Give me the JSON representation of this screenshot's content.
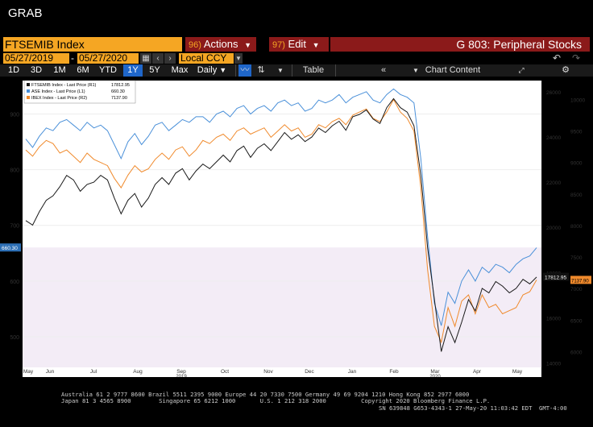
{
  "window": {
    "title": "GRAB"
  },
  "toolbar1": {
    "ticker": "FTSEMIB Index",
    "actions_num": "96)",
    "actions_label": "Actions",
    "edit_num": "97)",
    "edit_label": "Edit",
    "page_title": "G 803: Peripheral Stocks"
  },
  "toolbar2": {
    "start_date": "05/27/2019",
    "end_date": "05/27/2020",
    "dash": "-",
    "currency": "Local CCY"
  },
  "toolbar3": {
    "ranges": [
      "1D",
      "3D",
      "1M",
      "6M",
      "YTD",
      "1Y",
      "5Y",
      "Max"
    ],
    "active_range": "1Y",
    "frequency": "Daily",
    "table_label": "Table",
    "chart_content_label": "Chart Content"
  },
  "chart_data": {
    "type": "line",
    "x_tick_labels": [
      "May",
      "Jun",
      "Jul",
      "Aug",
      "Sep",
      "Oct",
      "Nov",
      "Dec",
      "Jan",
      "Feb",
      "Mar",
      "Apr",
      "May"
    ],
    "year_labels": [
      "2019",
      "2020"
    ],
    "legend": [
      {
        "name": "FTSEMIB Index - Last Price (R1)",
        "value": "17812.95",
        "color": "#d9d9d9"
      },
      {
        "name": "ASE Index - Last Price (L1)",
        "value": "660.30",
        "color": "#4a90d9"
      },
      {
        "name": "IBEX Index - Last Price (R2)",
        "value": "7137.90",
        "color": "#f08a2c"
      }
    ],
    "left_axis": {
      "ticks": [
        500,
        600,
        700,
        800,
        900
      ],
      "range": [
        445,
        960
      ],
      "current_label": "660.30"
    },
    "right_axis_1": {
      "ticks": [
        14000,
        16000,
        18000,
        20000,
        22000,
        24000,
        26000
      ],
      "range": [
        13800,
        26500
      ],
      "current_label": "17812.95"
    },
    "right_axis_2": {
      "ticks": [
        6000,
        6500,
        7000,
        7500,
        8000,
        8500,
        9000,
        9500,
        10000
      ],
      "range": [
        5750,
        10300
      ],
      "current_label": "7137.90"
    },
    "series": [
      {
        "name": "FTSEMIB Index",
        "axis": "R1",
        "values": [
          20300,
          20100,
          20700,
          21200,
          21400,
          21800,
          22300,
          22100,
          21600,
          21900,
          22000,
          22300,
          22100,
          21300,
          20600,
          21200,
          21500,
          20900,
          21300,
          21900,
          22200,
          21900,
          22400,
          22600,
          22100,
          22500,
          22800,
          22600,
          22900,
          23200,
          22900,
          23400,
          23600,
          23100,
          23500,
          23700,
          23400,
          23800,
          24200,
          23900,
          24100,
          23800,
          24000,
          24400,
          24200,
          24500,
          24700,
          24300,
          24900,
          25000,
          25200,
          24800,
          24600,
          25300,
          25700,
          25300,
          25100,
          24500,
          22300,
          19100,
          16800,
          14500,
          15600,
          14900,
          15800,
          16800,
          16300,
          17300,
          17100,
          17600,
          17400,
          17100,
          17300,
          17700,
          17500,
          17800
        ]
      },
      {
        "name": "ASE Index",
        "axis": "L1",
        "values": [
          855,
          840,
          860,
          875,
          870,
          885,
          890,
          880,
          870,
          885,
          875,
          880,
          870,
          845,
          820,
          850,
          865,
          845,
          860,
          880,
          885,
          870,
          880,
          890,
          885,
          895,
          895,
          885,
          900,
          905,
          895,
          910,
          915,
          900,
          910,
          915,
          905,
          920,
          925,
          915,
          920,
          905,
          910,
          925,
          920,
          925,
          935,
          920,
          930,
          935,
          940,
          925,
          920,
          935,
          945,
          935,
          930,
          920,
          820,
          680,
          560,
          520,
          580,
          560,
          600,
          620,
          600,
          625,
          615,
          630,
          625,
          615,
          630,
          640,
          645,
          660
        ]
      },
      {
        "name": "IBEX Index",
        "axis": "R2",
        "values": [
          9200,
          9100,
          9250,
          9350,
          9300,
          9150,
          9200,
          9100,
          9000,
          9150,
          9050,
          9000,
          8950,
          8750,
          8600,
          8800,
          8950,
          8850,
          8900,
          9050,
          9150,
          9050,
          9200,
          9250,
          9100,
          9200,
          9350,
          9300,
          9400,
          9450,
          9350,
          9500,
          9550,
          9450,
          9500,
          9550,
          9400,
          9500,
          9600,
          9500,
          9550,
          9400,
          9450,
          9600,
          9550,
          9650,
          9700,
          9600,
          9750,
          9800,
          9850,
          9700,
          9650,
          9800,
          10000,
          9800,
          9700,
          9500,
          8600,
          7300,
          6400,
          6150,
          6700,
          6400,
          6800,
          6900,
          6600,
          6900,
          6700,
          6750,
          6600,
          6650,
          6700,
          6900,
          6950,
          7138
        ]
      }
    ]
  },
  "footer": {
    "line1": "Australia 61 2 9777 8600 Brazil 5511 2395 9000 Europe 44 20 7330 7500 Germany 49 69 9204 1210 Hong Kong 852 2977 6000",
    "line2": "Japan 81 3 4565 8900        Singapore 65 6212 1000       U.S. 1 212 318 2000          Copyright 2020 Bloomberg Finance L.P.",
    "line3": "SN 639848 G653-4343-1 27-May-20 11:03:42 EDT  GMT-4:00"
  }
}
